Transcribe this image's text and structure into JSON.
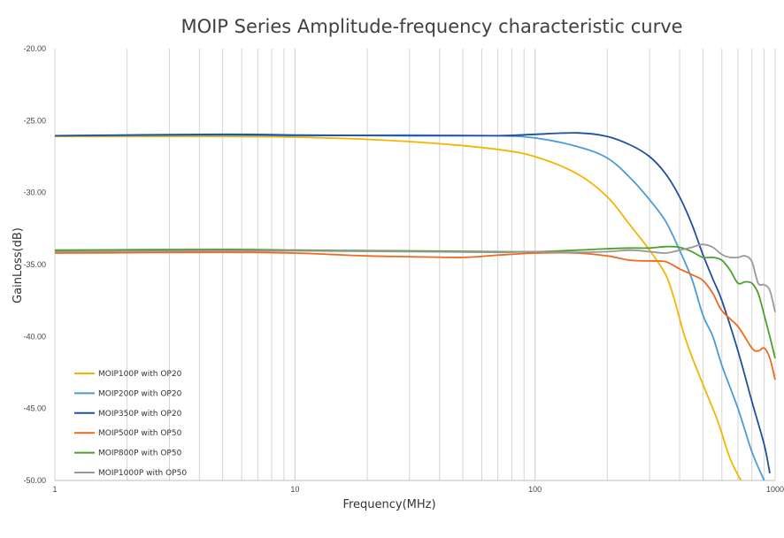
{
  "chart_data": {
    "type": "line",
    "title": "MOIP Series Amplitude-frequency characteristic curve",
    "xlabel": "Frequency(MHz)",
    "ylabel": "GainLoss(dB)",
    "x_scale": "log",
    "xlim": [
      1,
      1000
    ],
    "ylim": [
      -50,
      -20
    ],
    "x_ticks": [
      1,
      10,
      100,
      1000
    ],
    "x_tick_labels": [
      "1",
      "10",
      "100",
      "1000"
    ],
    "y_ticks": [
      -20,
      -25,
      -30,
      -35,
      -40,
      -45,
      -50
    ],
    "y_tick_labels": [
      "-20.00",
      "-25.00",
      "-30.00",
      "-35.00",
      "-40.00",
      "-45.00",
      "-50.00"
    ],
    "grid": "vertical minor and major lines at log decades",
    "legend_position": "bottom-left",
    "series": [
      {
        "name": "MOIP100P with OP20",
        "color": "#F5B400",
        "x": [
          1,
          5,
          10,
          20,
          40,
          70,
          100,
          150,
          200,
          250,
          300,
          350,
          380,
          420,
          470,
          520,
          580,
          650,
          720
        ],
        "values": [
          -26.1,
          -26.1,
          -26.15,
          -26.3,
          -26.6,
          -27.0,
          -27.5,
          -28.7,
          -30.3,
          -32.3,
          -34.0,
          -35.7,
          -37.4,
          -40.0,
          -42.2,
          -44.0,
          -46.0,
          -48.5,
          -50.0
        ]
      },
      {
        "name": "MOIP200P with OP20",
        "color": "#4A9BD8",
        "x": [
          1,
          5,
          10,
          30,
          70,
          100,
          150,
          200,
          250,
          300,
          350,
          400,
          450,
          500,
          550,
          600,
          700,
          800,
          900
        ],
        "values": [
          -26.05,
          -26.0,
          -26.05,
          -26.0,
          -26.05,
          -26.2,
          -26.8,
          -27.6,
          -29.0,
          -30.5,
          -32.0,
          -34.0,
          -36.0,
          -38.5,
          -40.0,
          -42.0,
          -45.0,
          -48.0,
          -50.0
        ]
      },
      {
        "name": "MOIP350P with OP20",
        "color": "#1F4EA3",
        "x": [
          1,
          5,
          10,
          30,
          70,
          100,
          150,
          200,
          250,
          300,
          350,
          400,
          450,
          500,
          550,
          600,
          700,
          800,
          900,
          950
        ],
        "values": [
          -26.05,
          -25.95,
          -26.0,
          -26.05,
          -26.05,
          -25.95,
          -25.85,
          -26.1,
          -26.7,
          -27.5,
          -28.7,
          -30.3,
          -32.2,
          -34.3,
          -36.0,
          -37.5,
          -41.0,
          -44.5,
          -47.5,
          -49.5
        ]
      },
      {
        "name": "MOIP500P with OP50",
        "color": "#EE6A1E",
        "x": [
          1,
          5,
          10,
          20,
          30,
          50,
          70,
          100,
          150,
          200,
          250,
          300,
          350,
          400,
          450,
          500,
          550,
          600,
          700,
          800,
          850,
          900,
          950,
          1000
        ],
        "values": [
          -34.2,
          -34.15,
          -34.2,
          -34.4,
          -34.45,
          -34.5,
          -34.35,
          -34.2,
          -34.2,
          -34.4,
          -34.7,
          -34.75,
          -34.8,
          -35.3,
          -35.7,
          -36.1,
          -37.0,
          -38.2,
          -39.3,
          -40.8,
          -41.0,
          -40.8,
          -41.5,
          -43.0
        ]
      },
      {
        "name": "MOIP800P with OP50",
        "color": "#4C9F2C",
        "x": [
          1,
          5,
          10,
          30,
          70,
          100,
          150,
          200,
          250,
          300,
          350,
          400,
          450,
          500,
          550,
          600,
          650,
          700,
          750,
          800,
          850,
          900,
          950,
          1000
        ],
        "values": [
          -34.0,
          -33.95,
          -34.0,
          -34.05,
          -34.1,
          -34.1,
          -34.0,
          -33.9,
          -33.85,
          -33.85,
          -33.75,
          -33.8,
          -34.1,
          -34.5,
          -34.5,
          -34.7,
          -35.4,
          -36.3,
          -36.2,
          -36.3,
          -37.0,
          -38.5,
          -40.0,
          -41.5
        ]
      },
      {
        "name": "MOIP1000P with OP50",
        "color": "#999999",
        "x": [
          1,
          5,
          10,
          30,
          70,
          100,
          150,
          200,
          250,
          300,
          350,
          400,
          450,
          500,
          550,
          600,
          650,
          700,
          750,
          800,
          850,
          900,
          950,
          1000
        ],
        "values": [
          -34.1,
          -34.05,
          -34.05,
          -34.1,
          -34.15,
          -34.1,
          -34.15,
          -34.1,
          -34.0,
          -34.1,
          -34.2,
          -34.0,
          -33.8,
          -33.6,
          -33.8,
          -34.3,
          -34.5,
          -34.5,
          -34.4,
          -34.8,
          -36.3,
          -36.4,
          -36.8,
          -38.3
        ]
      }
    ]
  }
}
